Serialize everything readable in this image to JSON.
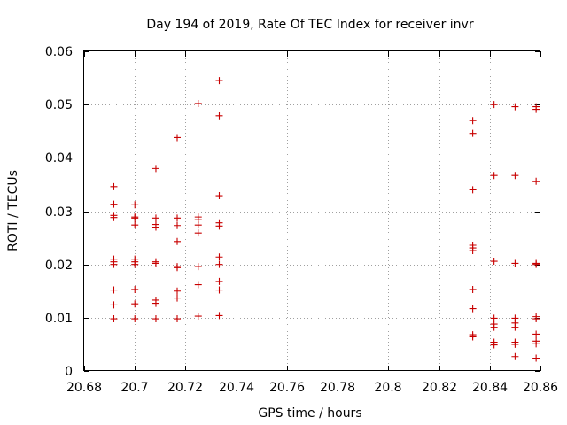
{
  "chart_data": {
    "type": "scatter",
    "title": "Day 194 of 2019, Rate Of TEC Index for receiver invr",
    "xlabel": "GPS time / hours",
    "ylabel": "ROTI / TECUs",
    "xlim": [
      20.68,
      20.86
    ],
    "ylim": [
      0,
      0.06
    ],
    "grid": true,
    "marker": "+",
    "color": "#c80000",
    "x_ticks": [
      20.68,
      20.7,
      20.72,
      20.74,
      20.76,
      20.78,
      20.8,
      20.82,
      20.84,
      20.86
    ],
    "x_tick_labels": [
      "20.68",
      "20.7",
      "20.72",
      "20.74",
      "20.76",
      "20.78",
      "20.8",
      "20.82",
      "20.84",
      "20.86"
    ],
    "y_ticks": [
      0,
      0.01,
      0.02,
      0.03,
      0.04,
      0.05,
      0.06
    ],
    "y_tick_labels": [
      "0",
      "0.01",
      "0.02",
      "0.03",
      "0.04",
      "0.05",
      "0.06"
    ],
    "series": [
      {
        "name": "ROTI",
        "points": [
          [
            20.6917,
            0.0346
          ],
          [
            20.6917,
            0.0313
          ],
          [
            20.6917,
            0.0292
          ],
          [
            20.6917,
            0.0288
          ],
          [
            20.6917,
            0.021
          ],
          [
            20.6917,
            0.0205
          ],
          [
            20.6917,
            0.02
          ],
          [
            20.6917,
            0.0152
          ],
          [
            20.6917,
            0.0124
          ],
          [
            20.6917,
            0.0098
          ],
          [
            20.7,
            0.0312
          ],
          [
            20.7,
            0.0289
          ],
          [
            20.7,
            0.0287
          ],
          [
            20.7,
            0.0274
          ],
          [
            20.7,
            0.021
          ],
          [
            20.7,
            0.0205
          ],
          [
            20.7,
            0.02
          ],
          [
            20.7,
            0.0153
          ],
          [
            20.7,
            0.0126
          ],
          [
            20.7,
            0.0098
          ],
          [
            20.7083,
            0.038
          ],
          [
            20.7083,
            0.0287
          ],
          [
            20.7083,
            0.0275
          ],
          [
            20.7083,
            0.027
          ],
          [
            20.7083,
            0.0205
          ],
          [
            20.7083,
            0.0202
          ],
          [
            20.7083,
            0.0133
          ],
          [
            20.7083,
            0.0127
          ],
          [
            20.7083,
            0.0098
          ],
          [
            20.7167,
            0.0438
          ],
          [
            20.7167,
            0.0287
          ],
          [
            20.7167,
            0.0273
          ],
          [
            20.7167,
            0.0243
          ],
          [
            20.7167,
            0.0196
          ],
          [
            20.7167,
            0.0194
          ],
          [
            20.7167,
            0.015
          ],
          [
            20.7167,
            0.0137
          ],
          [
            20.7167,
            0.0098
          ],
          [
            20.725,
            0.0502
          ],
          [
            20.725,
            0.0289
          ],
          [
            20.725,
            0.0284
          ],
          [
            20.725,
            0.0274
          ],
          [
            20.725,
            0.0259
          ],
          [
            20.725,
            0.0196
          ],
          [
            20.725,
            0.0162
          ],
          [
            20.725,
            0.0103
          ],
          [
            20.7333,
            0.0545
          ],
          [
            20.7333,
            0.0479
          ],
          [
            20.7333,
            0.0329
          ],
          [
            20.7333,
            0.0278
          ],
          [
            20.7333,
            0.0272
          ],
          [
            20.7333,
            0.0214
          ],
          [
            20.7333,
            0.02
          ],
          [
            20.7333,
            0.0168
          ],
          [
            20.7333,
            0.0152
          ],
          [
            20.7333,
            0.0104
          ],
          [
            20.8333,
            0.047
          ],
          [
            20.8333,
            0.0446
          ],
          [
            20.8333,
            0.034
          ],
          [
            20.8333,
            0.0236
          ],
          [
            20.8333,
            0.0231
          ],
          [
            20.8333,
            0.0226
          ],
          [
            20.8333,
            0.0153
          ],
          [
            20.8333,
            0.0117
          ],
          [
            20.8333,
            0.0068
          ],
          [
            20.8333,
            0.0064
          ],
          [
            20.8417,
            0.05
          ],
          [
            20.8417,
            0.0367
          ],
          [
            20.8417,
            0.0206
          ],
          [
            20.8417,
            0.0099
          ],
          [
            20.8417,
            0.0088
          ],
          [
            20.8417,
            0.0082
          ],
          [
            20.8417,
            0.0054
          ],
          [
            20.8417,
            0.0049
          ],
          [
            20.85,
            0.0496
          ],
          [
            20.85,
            0.0367
          ],
          [
            20.85,
            0.0202
          ],
          [
            20.85,
            0.0099
          ],
          [
            20.85,
            0.009
          ],
          [
            20.85,
            0.0082
          ],
          [
            20.85,
            0.0054
          ],
          [
            20.85,
            0.005
          ],
          [
            20.85,
            0.0027
          ],
          [
            20.8583,
            0.0496
          ],
          [
            20.8583,
            0.0491
          ],
          [
            20.8583,
            0.0356
          ],
          [
            20.8583,
            0.0202
          ],
          [
            20.8583,
            0.02
          ],
          [
            20.8583,
            0.0102
          ],
          [
            20.8583,
            0.0098
          ],
          [
            20.8583,
            0.0069
          ],
          [
            20.8583,
            0.0056
          ],
          [
            20.8583,
            0.0051
          ],
          [
            20.8583,
            0.0024
          ]
        ]
      }
    ]
  }
}
